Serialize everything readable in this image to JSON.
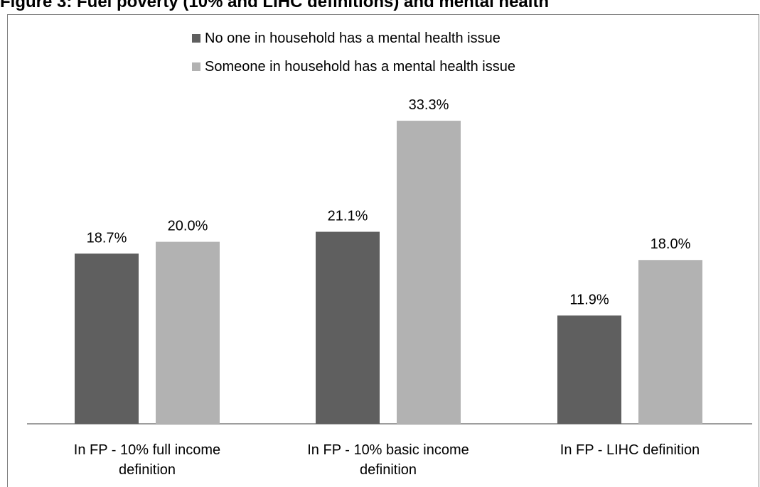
{
  "title": "Figure 3: Fuel poverty (10% and LIHC definitions) and mental health",
  "colors": {
    "series1": "#5f5f5f",
    "series2": "#b2b2b2",
    "axis": "#7f7f7f"
  },
  "chart_data": {
    "type": "bar",
    "title": "Figure 3: Fuel poverty (10% and LIHC definitions) and mental health",
    "categories": [
      "In FP - 10% full income definition",
      "In FP - 10% basic income definition",
      "In FP - LIHC definition"
    ],
    "category_lines": [
      [
        "In FP - 10% full income",
        "definition"
      ],
      [
        "In FP - 10% basic income",
        "definition"
      ],
      [
        "In FP - LIHC definition"
      ]
    ],
    "series": [
      {
        "name": "No one in household has a mental health issue",
        "values": [
          18.7,
          21.1,
          11.9
        ],
        "labels": [
          "18.7%",
          "21.1%",
          "11.9%"
        ]
      },
      {
        "name": "Someone in household has a mental health issue",
        "values": [
          20.0,
          33.3,
          18.0
        ],
        "labels": [
          "20.0%",
          "33.3%",
          "18.0%"
        ]
      }
    ],
    "ylim": [
      0,
      40
    ],
    "grid": false,
    "legend": "top-center"
  }
}
